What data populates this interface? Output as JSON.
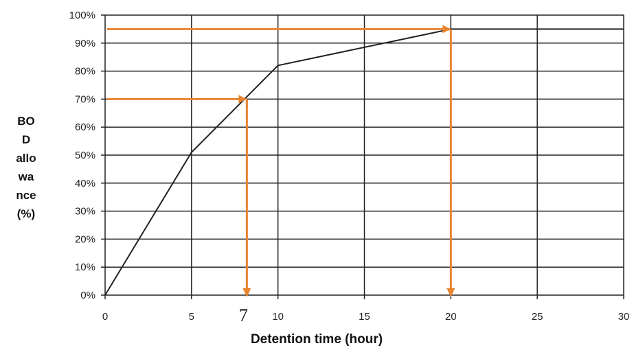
{
  "chart_data": {
    "type": "line",
    "title": "",
    "xlabel": "Detention time (hour)",
    "ylabel_lines": [
      "BO",
      "D",
      "allo",
      "wa",
      "nce",
      "(%)"
    ],
    "xlim": [
      0,
      30
    ],
    "ylim": [
      0,
      100
    ],
    "x_ticks": [
      0,
      5,
      10,
      15,
      20,
      25,
      30
    ],
    "y_ticks": [
      0,
      10,
      20,
      30,
      40,
      50,
      60,
      70,
      80,
      90,
      100
    ],
    "y_tick_suffix": "%",
    "grid": true,
    "series": [
      {
        "x": [
          0,
          5,
          10,
          20,
          30
        ],
        "y": [
          0,
          51,
          82,
          95,
          95
        ]
      }
    ],
    "annotations": [
      {
        "from_x": 0,
        "y": 70,
        "to_x": 8.2,
        "down_to": 0,
        "label": "7"
      },
      {
        "from_x": 0,
        "y": 95,
        "to_x": 20,
        "down_to": 0,
        "label": ""
      }
    ],
    "colors": {
      "line": "#222222",
      "grid": "#222222",
      "annotation": "#E8842F"
    }
  }
}
